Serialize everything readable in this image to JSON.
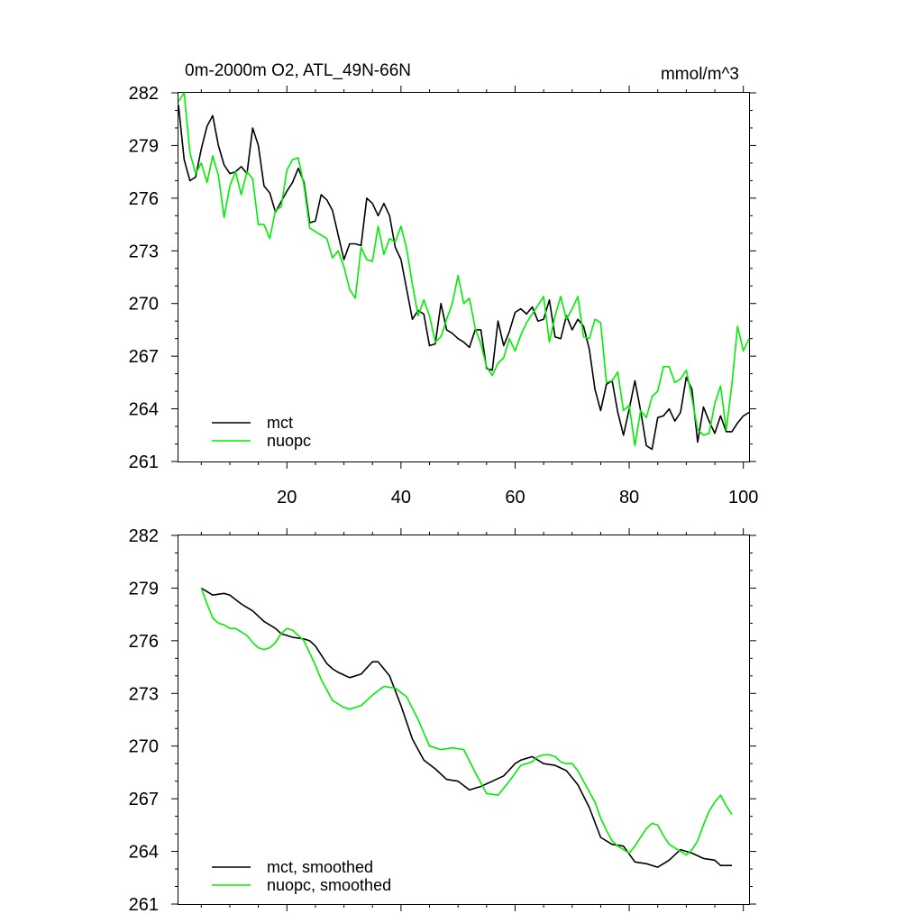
{
  "chart_data": [
    {
      "type": "line",
      "title": "0m-2000m O2, ATL_49N-66N",
      "units": "mmol/m^3",
      "xlabel": "",
      "ylabel": "",
      "xlim": [
        1,
        101
      ],
      "ylim": [
        261,
        282
      ],
      "xticks": [
        20,
        40,
        60,
        80,
        100
      ],
      "xtick_labels": [
        "20",
        "40",
        "60",
        "80",
        "100"
      ],
      "yticks": [
        261,
        264,
        267,
        270,
        273,
        276,
        279,
        282
      ],
      "ytick_labels": [
        "261",
        "264",
        "267",
        "270",
        "273",
        "276",
        "279",
        "282"
      ],
      "legend_position": "bottom-left",
      "series": [
        {
          "name": "mct",
          "color": "#000000",
          "x_start": 1,
          "values": [
            281.3,
            278.2,
            277.0,
            277.2,
            278.8,
            280.1,
            280.7,
            279.0,
            277.9,
            277.4,
            277.5,
            277.8,
            277.4,
            280.0,
            279.0,
            276.7,
            276.3,
            275.2,
            275.8,
            276.4,
            276.9,
            277.7,
            276.9,
            274.6,
            274.7,
            276.2,
            275.9,
            275.3,
            273.9,
            272.5,
            273.4,
            273.4,
            273.3,
            276.0,
            275.7,
            275.0,
            275.7,
            275.0,
            273.2,
            272.5,
            270.8,
            269.1,
            269.6,
            269.4,
            267.6,
            267.7,
            270.0,
            268.5,
            268.3,
            268.0,
            267.8,
            267.5,
            268.5,
            268.5,
            266.3,
            266.2,
            269.0,
            267.6,
            268.4,
            269.5,
            269.7,
            269.4,
            269.8,
            269.0,
            269.1,
            270.2,
            268.1,
            268.0,
            269.3,
            268.5,
            269.1,
            268.7,
            267.4,
            265.1,
            263.9,
            265.4,
            265.6,
            263.8,
            262.5,
            264.0,
            265.6,
            263.9,
            261.9,
            261.7,
            263.5,
            263.6,
            264.0,
            263.3,
            263.8,
            265.8,
            265.1,
            262.1,
            264.1,
            263.3,
            262.6,
            263.6,
            262.7,
            262.7,
            263.2,
            263.6,
            263.8
          ]
        },
        {
          "name": "nuopc",
          "color": "#00ee00",
          "x_start": 1,
          "values": [
            281.5,
            282.0,
            278.6,
            277.4,
            278.0,
            276.9,
            278.4,
            277.3,
            274.9,
            276.7,
            277.5,
            276.2,
            277.5,
            277.1,
            274.5,
            274.5,
            273.7,
            275.3,
            275.5,
            277.6,
            278.2,
            278.3,
            276.7,
            274.3,
            274.1,
            273.9,
            273.7,
            272.6,
            273.0,
            272.1,
            270.8,
            270.3,
            273.2,
            272.5,
            272.4,
            274.4,
            272.8,
            273.7,
            273.5,
            274.4,
            273.1,
            271.1,
            269.3,
            270.2,
            269.3,
            267.8,
            268.1,
            269.1,
            270.0,
            271.6,
            270.0,
            270.3,
            268.6,
            267.7,
            266.4,
            265.9,
            266.6,
            266.9,
            268.0,
            267.3,
            268.2,
            268.9,
            269.4,
            269.9,
            270.4,
            267.8,
            269.3,
            270.4,
            269.1,
            269.7,
            270.4,
            268.1,
            268.0,
            269.1,
            268.9,
            265.5,
            265.6,
            266.1,
            263.9,
            264.2,
            261.9,
            263.9,
            263.5,
            264.7,
            265.0,
            266.4,
            266.4,
            265.5,
            265.7,
            266.2,
            264.6,
            262.8,
            262.5,
            262.6,
            264.3,
            265.3,
            262.8,
            265.4,
            268.7,
            267.3,
            268.0
          ]
        }
      ]
    },
    {
      "type": "line",
      "title": "",
      "xlabel": "",
      "ylabel": "",
      "xlim": [
        1,
        101
      ],
      "ylim": [
        261,
        282
      ],
      "xticks": [
        20,
        40,
        60,
        80,
        100
      ],
      "yticks": [
        261,
        264,
        267,
        270,
        273,
        276,
        279,
        282
      ],
      "ytick_labels": [
        "261",
        "264",
        "267",
        "270",
        "273",
        "276",
        "279",
        "282"
      ],
      "legend_position": "bottom-left",
      "series": [
        {
          "name": "mct, smoothed",
          "color": "#000000",
          "x": [
            5,
            7,
            9,
            10,
            12,
            13,
            14,
            15,
            16,
            18,
            19,
            20,
            21,
            23,
            24,
            25,
            27,
            28,
            29,
            31,
            33,
            35,
            36,
            38,
            40,
            42,
            44,
            46,
            48,
            50,
            52,
            54,
            56,
            58,
            60,
            61,
            63,
            65,
            67,
            69,
            71,
            73,
            75,
            77,
            79,
            81,
            83,
            85,
            87,
            89,
            91,
            93,
            95,
            96,
            97,
            98
          ],
          "values": [
            279.0,
            278.6,
            278.7,
            278.6,
            278.1,
            277.9,
            277.7,
            277.4,
            277.1,
            276.7,
            276.4,
            276.3,
            276.2,
            276.1,
            276.0,
            275.7,
            274.7,
            274.4,
            274.2,
            273.9,
            274.1,
            274.8,
            274.8,
            274.0,
            272.3,
            270.4,
            269.2,
            268.7,
            268.1,
            268.0,
            267.5,
            267.7,
            268.0,
            268.3,
            269.0,
            269.2,
            269.4,
            269.0,
            268.9,
            268.6,
            267.8,
            266.5,
            264.8,
            264.4,
            264.3,
            263.4,
            263.3,
            263.1,
            263.5,
            264.1,
            263.9,
            263.6,
            263.5,
            263.2,
            263.2,
            263.2
          ]
        },
        {
          "name": "nuopc, smoothed",
          "color": "#00ee00",
          "x": [
            5,
            6,
            7,
            8,
            9,
            10,
            11,
            12,
            13,
            14,
            15,
            16,
            17,
            18,
            19,
            20,
            21,
            22,
            23,
            24,
            25,
            26,
            27,
            28,
            29,
            30,
            31,
            33,
            35,
            37,
            39,
            41,
            43,
            45,
            47,
            49,
            51,
            53,
            55,
            57,
            59,
            61,
            63,
            64,
            65,
            66,
            67,
            68,
            69,
            70,
            71,
            72,
            73,
            74,
            75,
            76,
            77,
            78,
            79,
            80,
            81,
            82,
            83,
            84,
            85,
            86,
            87,
            88,
            89,
            90,
            91,
            92,
            93,
            94,
            95,
            96,
            97,
            98
          ],
          "values": [
            279.0,
            278.1,
            277.3,
            277.0,
            276.9,
            276.7,
            276.7,
            276.5,
            276.3,
            275.9,
            275.6,
            275.5,
            275.6,
            275.9,
            276.4,
            276.7,
            276.6,
            276.3,
            276.0,
            275.3,
            274.6,
            273.8,
            273.2,
            272.6,
            272.4,
            272.2,
            272.1,
            272.3,
            272.9,
            273.4,
            273.3,
            272.8,
            271.5,
            270.0,
            269.8,
            269.9,
            269.8,
            268.5,
            267.3,
            267.2,
            268.0,
            268.9,
            269.1,
            269.4,
            269.5,
            269.5,
            269.4,
            269.1,
            269.0,
            269.0,
            268.6,
            268.0,
            267.4,
            266.8,
            265.9,
            265.2,
            264.6,
            264.3,
            264.1,
            263.9,
            264.3,
            264.8,
            265.3,
            265.6,
            265.5,
            264.9,
            264.4,
            264.2,
            264.0,
            263.8,
            264.1,
            264.6,
            265.5,
            266.3,
            266.8,
            267.2,
            266.6,
            266.1
          ]
        }
      ]
    }
  ]
}
